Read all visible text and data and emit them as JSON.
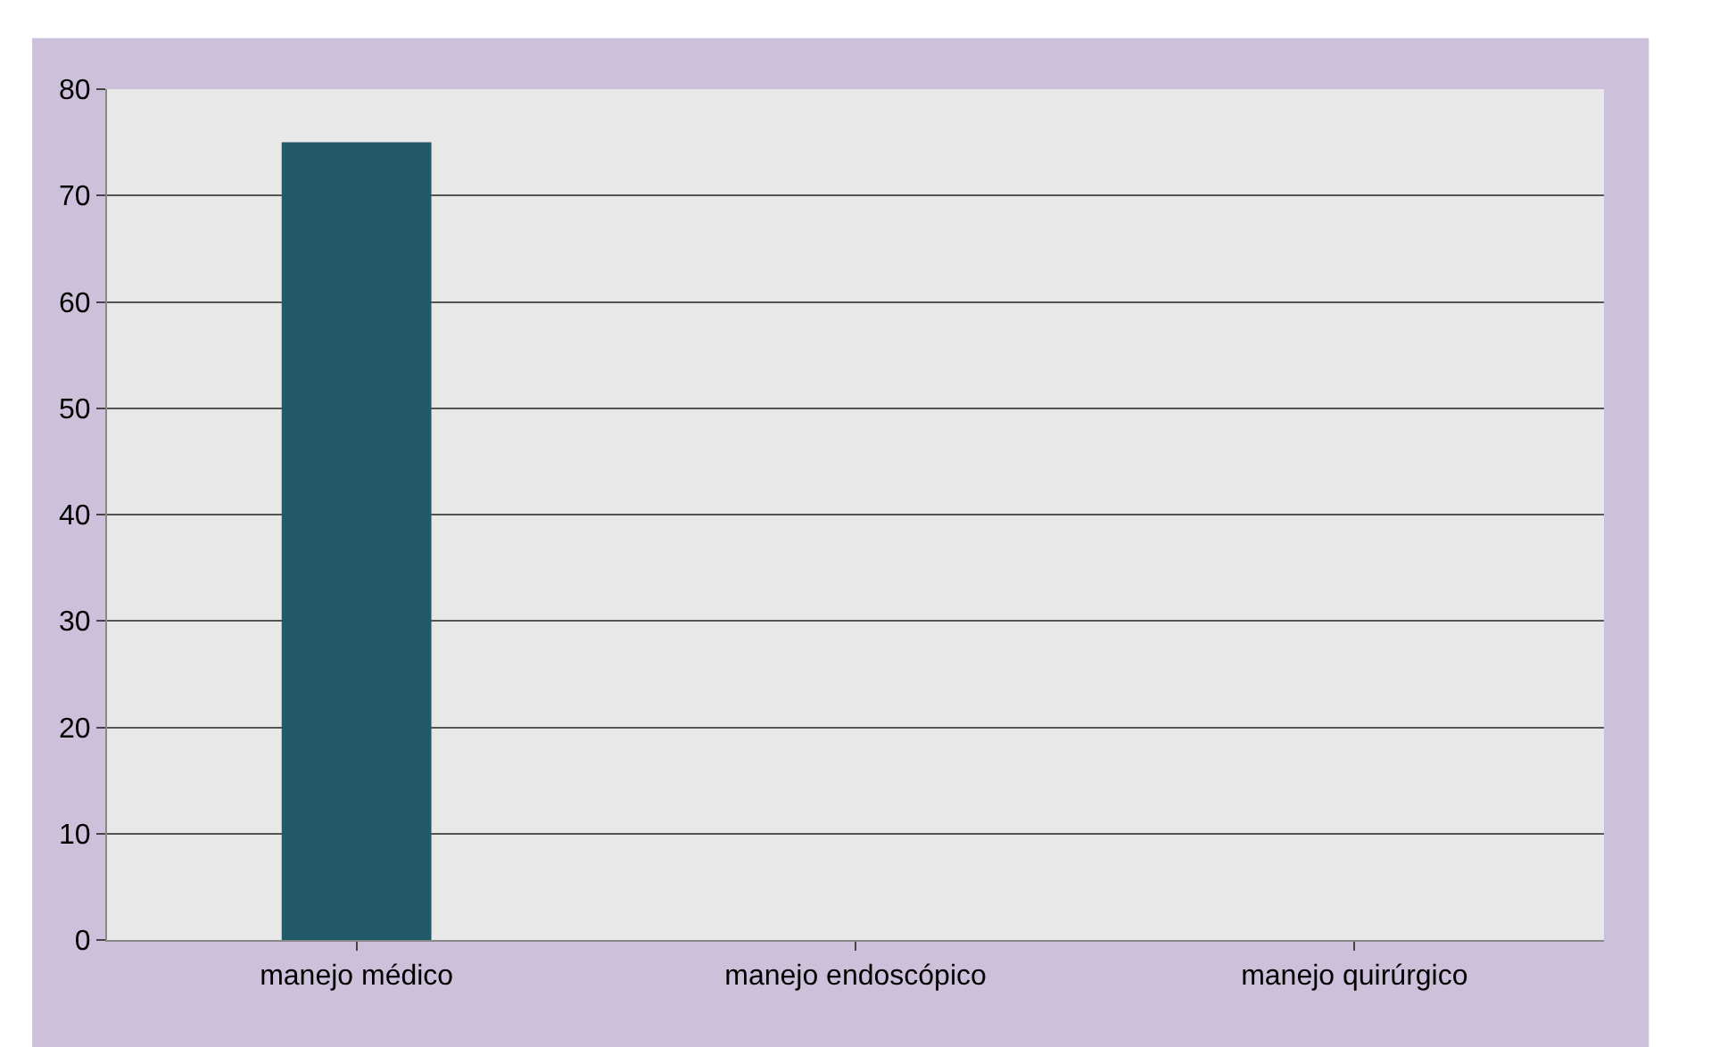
{
  "chart_data": {
    "type": "bar",
    "categories": [
      "manejo médico",
      "manejo endoscópico",
      "manejo quirúrgico"
    ],
    "values": [
      75,
      0,
      0
    ],
    "color": "#215968",
    "ylim": [
      0,
      80
    ],
    "yticks": [
      0,
      10,
      20,
      30,
      40,
      50,
      60,
      70,
      80
    ],
    "grid": "y"
  }
}
